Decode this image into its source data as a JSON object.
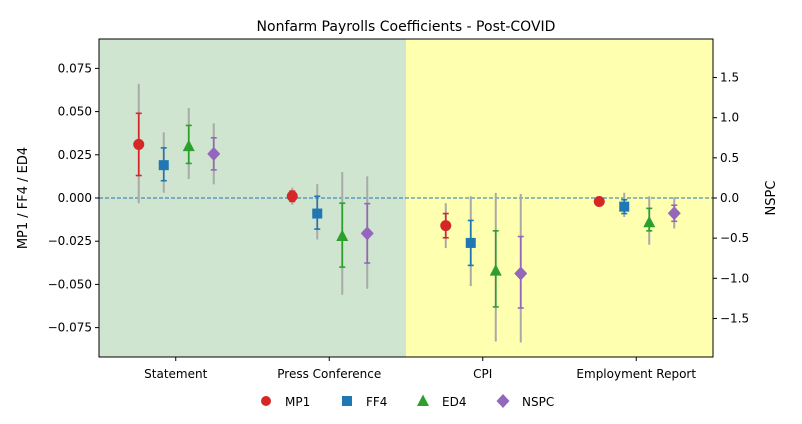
{
  "chart_data": {
    "type": "scatter",
    "title": "Nonfarm Payrolls Coefficients - Post-COVID",
    "ylabel_left": "MP1 / FF4 / ED4",
    "ylabel_right": "NSPC",
    "ylim_left": [
      -0.092,
      0.092
    ],
    "ylim_right": [
      -1.98,
      1.98
    ],
    "yticks_left": [
      -0.075,
      -0.05,
      -0.025,
      0.0,
      0.025,
      0.05,
      0.075
    ],
    "yticks_left_labels": [
      "−0.075",
      "−0.050",
      "−0.025",
      "0.000",
      "0.025",
      "0.050",
      "0.075"
    ],
    "yticks_right": [
      -1.5,
      -1.0,
      -0.5,
      0.0,
      0.5,
      1.0,
      1.5
    ],
    "yticks_right_labels": [
      "−1.5",
      "−1.0",
      "−0.5",
      "0.0",
      "0.5",
      "1.0",
      "1.5"
    ],
    "categories": [
      "Statement",
      "Press Conference",
      "CPI",
      "Employment Report"
    ],
    "background_regions": [
      {
        "from_category": 0,
        "to_category": 1,
        "color": "#cfe5cf"
      },
      {
        "from_category": 2,
        "to_category": 3,
        "color": "#ffffb0"
      }
    ],
    "zero_line_color": "#1f77b4",
    "series": [
      {
        "name": "MP1",
        "axis": "left",
        "marker": "circle",
        "color": "#d62728",
        "values": [
          0.031,
          0.001,
          -0.016,
          -0.002
        ],
        "ci_inner": [
          [
            0.013,
            0.049
          ],
          [
            -0.002,
            0.004
          ],
          [
            -0.023,
            -0.009
          ],
          [
            -0.004,
            0.0
          ]
        ],
        "ci_outer": [
          [
            -0.003,
            0.066
          ],
          [
            -0.004,
            0.006
          ],
          [
            -0.029,
            -0.003
          ],
          [
            -0.005,
            0.001
          ]
        ]
      },
      {
        "name": "FF4",
        "axis": "left",
        "marker": "square",
        "color": "#1f77b4",
        "values": [
          0.019,
          -0.009,
          -0.026,
          -0.005
        ],
        "ci_inner": [
          [
            0.01,
            0.029
          ],
          [
            -0.018,
            0.001
          ],
          [
            -0.039,
            -0.013
          ],
          [
            -0.009,
            -0.001
          ]
        ],
        "ci_outer": [
          [
            0.003,
            0.038
          ],
          [
            -0.024,
            0.008
          ],
          [
            -0.051,
            0.001
          ],
          [
            -0.011,
            0.003
          ]
        ]
      },
      {
        "name": "ED4",
        "axis": "left",
        "marker": "triangle",
        "color": "#2ca02c",
        "values": [
          0.03,
          -0.022,
          -0.042,
          -0.014
        ],
        "ci_inner": [
          [
            0.02,
            0.042
          ],
          [
            -0.04,
            -0.003
          ],
          [
            -0.063,
            -0.019
          ],
          [
            -0.019,
            -0.006
          ]
        ],
        "ci_outer": [
          [
            0.011,
            0.052
          ],
          [
            -0.056,
            0.015
          ],
          [
            -0.083,
            0.003
          ],
          [
            -0.027,
            0.001
          ]
        ]
      },
      {
        "name": "NSPC",
        "axis": "right",
        "marker": "diamond",
        "color": "#9467bd",
        "values": [
          0.55,
          -0.44,
          -0.94,
          -0.19
        ],
        "ci_inner": [
          [
            0.35,
            0.75
          ],
          [
            -0.81,
            -0.07
          ],
          [
            -1.37,
            -0.48
          ],
          [
            -0.29,
            -0.09
          ]
        ],
        "ci_outer": [
          [
            0.17,
            0.93
          ],
          [
            -1.13,
            0.27
          ],
          [
            -1.8,
            0.05
          ],
          [
            -0.38,
            0.01
          ]
        ]
      }
    ],
    "legend_position": "bottom"
  }
}
